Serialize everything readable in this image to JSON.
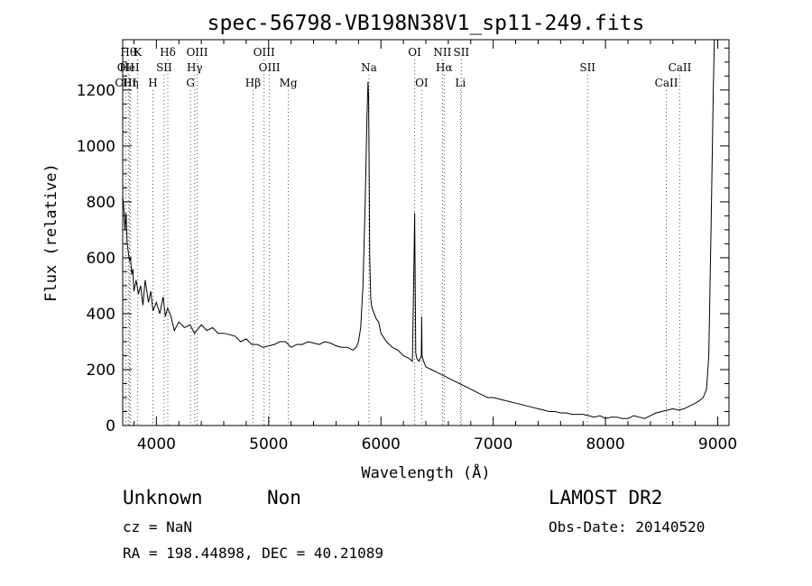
{
  "chart_data": {
    "type": "line",
    "title": "spec-56798-VB198N38V1_sp11-249.fits",
    "xlabel": "Wavelength (Å)",
    "ylabel": "Flux (relative)",
    "xlim": [
      3700,
      9100
    ],
    "ylim": [
      0,
      1380
    ],
    "xticks": [
      4000,
      5000,
      6000,
      7000,
      8000,
      9000
    ],
    "yticks": [
      0,
      200,
      400,
      600,
      800,
      1000,
      1200
    ],
    "grid": false,
    "series": [
      {
        "x": [
          3700,
          3710,
          3720,
          3730,
          3740,
          3750,
          3760,
          3770,
          3780,
          3790,
          3800,
          3820,
          3840,
          3860,
          3880,
          3900,
          3930,
          3950,
          3970,
          4000,
          4030,
          4060,
          4080,
          4100,
          4130,
          4160,
          4200,
          4250,
          4300,
          4340,
          4400,
          4450,
          4500,
          4550,
          4600,
          4650,
          4700,
          4750,
          4800,
          4850,
          4900,
          4950,
          5000,
          5050,
          5100,
          5150,
          5200,
          5250,
          5300,
          5350,
          5400,
          5450,
          5500,
          5550,
          5600,
          5650,
          5700,
          5750,
          5780,
          5800,
          5820,
          5840,
          5860,
          5875,
          5885,
          5890,
          5895,
          5900,
          5910,
          5920,
          5940,
          5960,
          5980,
          6000,
          6050,
          6100,
          6150,
          6200,
          6250,
          6280,
          6295,
          6300,
          6305,
          6310,
          6320,
          6340,
          6360,
          6363,
          6366,
          6380,
          6400,
          6450,
          6500,
          6550,
          6600,
          6650,
          6700,
          6750,
          6800,
          6850,
          6900,
          6950,
          7000,
          7050,
          7100,
          7150,
          7200,
          7250,
          7300,
          7350,
          7400,
          7450,
          7500,
          7550,
          7600,
          7650,
          7700,
          7750,
          7800,
          7850,
          7900,
          7950,
          8000,
          8050,
          8100,
          8150,
          8200,
          8250,
          8300,
          8350,
          8400,
          8450,
          8500,
          8550,
          8600,
          8650,
          8700,
          8750,
          8800,
          8840,
          8870,
          8900,
          8920,
          8940,
          8960,
          8970
        ],
        "y": [
          820,
          780,
          700,
          760,
          650,
          620,
          590,
          600,
          540,
          560,
          480,
          520,
          470,
          500,
          430,
          520,
          440,
          480,
          410,
          440,
          400,
          460,
          390,
          420,
          390,
          340,
          370,
          350,
          360,
          330,
          360,
          340,
          350,
          330,
          330,
          325,
          320,
          300,
          310,
          290,
          290,
          280,
          285,
          290,
          300,
          300,
          280,
          290,
          290,
          300,
          295,
          290,
          300,
          295,
          285,
          280,
          280,
          270,
          280,
          300,
          350,
          500,
          800,
          1100,
          1230,
          1180,
          900,
          600,
          450,
          420,
          400,
          380,
          370,
          330,
          300,
          280,
          270,
          250,
          240,
          230,
          600,
          760,
          500,
          260,
          240,
          230,
          250,
          390,
          250,
          230,
          210,
          200,
          190,
          180,
          170,
          160,
          150,
          140,
          130,
          120,
          110,
          100,
          100,
          95,
          90,
          85,
          80,
          75,
          70,
          65,
          60,
          55,
          50,
          50,
          45,
          45,
          40,
          40,
          40,
          35,
          30,
          35,
          25,
          30,
          30,
          25,
          25,
          35,
          30,
          25,
          35,
          45,
          50,
          55,
          60,
          55,
          60,
          70,
          80,
          90,
          100,
          130,
          250,
          700,
          1200,
          1380
        ]
      }
    ],
    "line_markers": [
      {
        "label": "OII",
        "wave": 3727,
        "row": 2
      },
      {
        "label": "OIII",
        "wave": 3727,
        "row": 3
      },
      {
        "label": "Hθ",
        "wave": 3750,
        "row": 1
      },
      {
        "label": "HeI",
        "wave": 3760,
        "row": 2
      },
      {
        "label": "Hη",
        "wave": 3770,
        "row": 3
      },
      {
        "label": "K",
        "wave": 3834,
        "row": 1
      },
      {
        "label": "SII",
        "wave": 4069,
        "row": 2
      },
      {
        "label": "H",
        "wave": 3969,
        "row": 3
      },
      {
        "label": "Hδ",
        "wave": 4102,
        "row": 1
      },
      {
        "label": "OIII",
        "wave": 4363,
        "row": 1
      },
      {
        "label": "Hγ",
        "wave": 4341,
        "row": 2
      },
      {
        "label": "G",
        "wave": 4304,
        "row": 3
      },
      {
        "label": "Hβ",
        "wave": 4861,
        "row": 3
      },
      {
        "label": "OIII",
        "wave": 4959,
        "row": 1
      },
      {
        "label": "OIII",
        "wave": 5007,
        "row": 2
      },
      {
        "label": "Mg",
        "wave": 5175,
        "row": 3
      },
      {
        "label": "Na",
        "wave": 5893,
        "row": 2
      },
      {
        "label": "OI",
        "wave": 6300,
        "row": 1
      },
      {
        "label": "OI",
        "wave": 6363,
        "row": 3
      },
      {
        "label": "NII",
        "wave": 6548,
        "row": 1
      },
      {
        "label": "SII",
        "wave": 6716,
        "row": 1
      },
      {
        "label": "Hα",
        "wave": 6563,
        "row": 2
      },
      {
        "label": "Li",
        "wave": 6708,
        "row": 3
      },
      {
        "label": "SII",
        "wave": 7840,
        "row": 2
      },
      {
        "label": "CaII",
        "wave": 8662,
        "row": 2
      },
      {
        "label": "CaII",
        "wave": 8542,
        "row": 3
      }
    ]
  },
  "info": {
    "class": "Unknown",
    "subclass": "Non",
    "cz": "cz = NaN",
    "radec": "RA = 198.44898, DEC =  40.21089",
    "survey": "LAMOST DR2",
    "obsdate": "Obs-Date: 20140520"
  }
}
